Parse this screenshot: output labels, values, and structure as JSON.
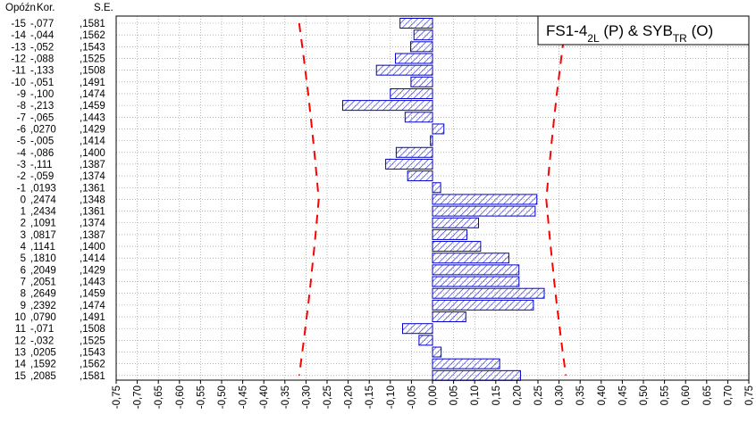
{
  "chart_data": {
    "type": "bar",
    "orientation": "horizontal",
    "title_parts": [
      {
        "text": "FS1-4",
        "sub": false
      },
      {
        "text": "2L",
        "sub": true
      },
      {
        "text": " (P) & SYB",
        "sub": false
      },
      {
        "text": "TR",
        "sub": true
      },
      {
        "text": " (O)",
        "sub": false
      }
    ],
    "column_headers": {
      "lag": "Opóźn",
      "corr": "Kor.",
      "se": "S.E."
    },
    "lags": [
      -15,
      -14,
      -13,
      -12,
      -11,
      -10,
      -9,
      -8,
      -7,
      -6,
      -5,
      -4,
      -3,
      -2,
      -1,
      0,
      1,
      2,
      3,
      4,
      5,
      6,
      7,
      8,
      9,
      10,
      11,
      12,
      13,
      14,
      15
    ],
    "lag_labels": [
      "-15",
      "-14",
      "-13",
      "-12",
      "-11",
      "-10",
      "-9",
      "-8",
      "-7",
      "-6",
      "-5",
      "-4",
      "-3",
      "-2",
      "-1",
      "0",
      "1",
      "2",
      "3",
      "4",
      "5",
      "6",
      "7",
      "8",
      "9",
      "10",
      "11",
      "12",
      "13",
      "14",
      "15"
    ],
    "corr_labels": [
      "-,077",
      "-,044",
      "-,052",
      "-,088",
      "-,133",
      "-,051",
      "-,100",
      "-,213",
      "-,065",
      ",0270",
      "-,005",
      "-,086",
      "-,111",
      "-,059",
      ",0193",
      ",2474",
      ",2434",
      ",1091",
      ",0817",
      ",1141",
      ",1810",
      ",2049",
      ",2051",
      ",2649",
      ",2392",
      ",0790",
      "-,071",
      "-,032",
      ",0205",
      ",1592",
      ",2085"
    ],
    "se_labels": [
      ",1581",
      ",1562",
      ",1543",
      ",1525",
      ",1508",
      ",1491",
      ",1474",
      ",1459",
      ",1443",
      ",1429",
      ",1414",
      ",1400",
      ",1387",
      ",1374",
      ",1361",
      ",1348",
      ",1361",
      ",1374",
      ",1387",
      ",1400",
      ",1414",
      ",1429",
      ",1443",
      ",1459",
      ",1474",
      ",1491",
      ",1508",
      ",1525",
      ",1543",
      ",1562",
      ",1581"
    ],
    "values": [
      -0.077,
      -0.044,
      -0.052,
      -0.088,
      -0.133,
      -0.051,
      -0.1,
      -0.213,
      -0.065,
      0.027,
      -0.005,
      -0.086,
      -0.111,
      -0.059,
      0.0193,
      0.2474,
      0.2434,
      0.1091,
      0.0817,
      0.1141,
      0.181,
      0.2049,
      0.2051,
      0.2649,
      0.2392,
      0.079,
      -0.071,
      -0.032,
      0.0205,
      0.1592,
      0.2085
    ],
    "se": [
      0.1581,
      0.1562,
      0.1543,
      0.1525,
      0.1508,
      0.1491,
      0.1474,
      0.1459,
      0.1443,
      0.1429,
      0.1414,
      0.14,
      0.1387,
      0.1374,
      0.1361,
      0.1348,
      0.1361,
      0.1374,
      0.1387,
      0.14,
      0.1414,
      0.1429,
      0.1443,
      0.1459,
      0.1474,
      0.1491,
      0.1508,
      0.1525,
      0.1543,
      0.1562,
      0.1581
    ],
    "confidence_multiplier": 2,
    "xlim": [
      -0.75,
      0.75
    ],
    "xticks": [
      -0.75,
      -0.7,
      -0.65,
      -0.6,
      -0.55,
      -0.5,
      -0.45,
      -0.4,
      -0.35,
      -0.3,
      -0.25,
      -0.2,
      -0.15,
      -0.1,
      -0.05,
      0.0,
      0.05,
      0.1,
      0.15,
      0.2,
      0.25,
      0.3,
      0.35,
      0.4,
      0.45,
      0.5,
      0.55,
      0.6,
      0.65,
      0.7,
      0.75
    ],
    "xtick_labels": [
      "-0,75",
      "-0,70",
      "-0,65",
      "-0,60",
      "-0,55",
      "-0,50",
      "-0,45",
      "-0,40",
      "-0,35",
      "-0,30",
      "-0,25",
      "-0,20",
      "-0,15",
      "-0,10",
      "-0,05",
      "0,00",
      "0,05",
      "0,10",
      "0,15",
      "0,20",
      "0,25",
      "0,30",
      "0,35",
      "0,40",
      "0,45",
      "0,50",
      "0,55",
      "0,60",
      "0,65",
      "0,70",
      "0,75"
    ],
    "grid": "dotted",
    "legend_placement": "top-right",
    "colors": {
      "bar_stroke": "#0000cc",
      "bar_hatch": "#2b2bd6",
      "confidence_band": "#ff0000",
      "grid": "#8a8a8a",
      "axis": "#000000"
    }
  }
}
